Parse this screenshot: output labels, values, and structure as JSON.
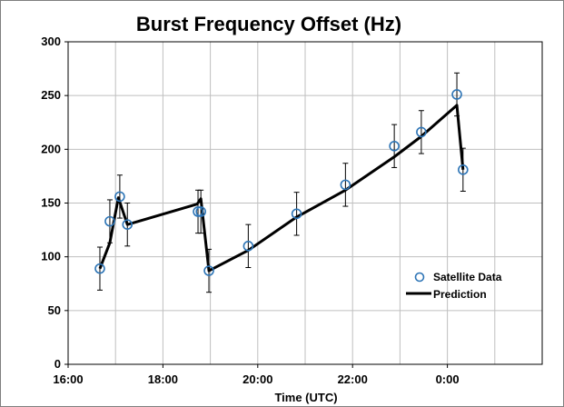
{
  "chart_data": {
    "type": "scatter",
    "title": "Burst Frequency Offset (Hz)",
    "xlabel": "Time (UTC)",
    "ylabel": "",
    "x_axis": {
      "min_hours": 16,
      "max_hours": 26,
      "tick_labels": [
        "16:00",
        "18:00",
        "20:00",
        "22:00",
        "0:00"
      ],
      "tick_values_hours": [
        16,
        18,
        20,
        22,
        24
      ]
    },
    "ylim": [
      0,
      300
    ],
    "y_ticks": [
      0,
      50,
      100,
      150,
      200,
      250,
      300
    ],
    "grid": true,
    "legend_position": "bottom-right",
    "series": [
      {
        "name": "Satellite Data",
        "kind": "scatter",
        "marker": "open-circle",
        "color": "#2e75b6",
        "x_hours": [
          16.67,
          16.88,
          17.09,
          17.25,
          18.74,
          18.8,
          18.97,
          19.8,
          20.82,
          21.85,
          22.88,
          23.45,
          24.2,
          24.33
        ],
        "y": [
          89,
          133,
          156,
          130,
          142,
          142,
          87,
          110,
          140,
          167,
          203,
          216,
          251,
          181
        ],
        "error": [
          20,
          20,
          20,
          20,
          20,
          20,
          20,
          20,
          20,
          20,
          20,
          20,
          20,
          20
        ]
      },
      {
        "name": "Prediction",
        "kind": "line",
        "color": "#000000",
        "x_hours": [
          16.67,
          16.88,
          17.06,
          17.25,
          18.72,
          18.8,
          18.97,
          19.8,
          20.82,
          21.85,
          22.88,
          23.45,
          24.2,
          24.33
        ],
        "y": [
          89,
          113,
          155,
          130,
          149,
          154,
          87,
          106,
          137,
          162,
          193,
          212,
          241,
          181
        ]
      }
    ]
  }
}
